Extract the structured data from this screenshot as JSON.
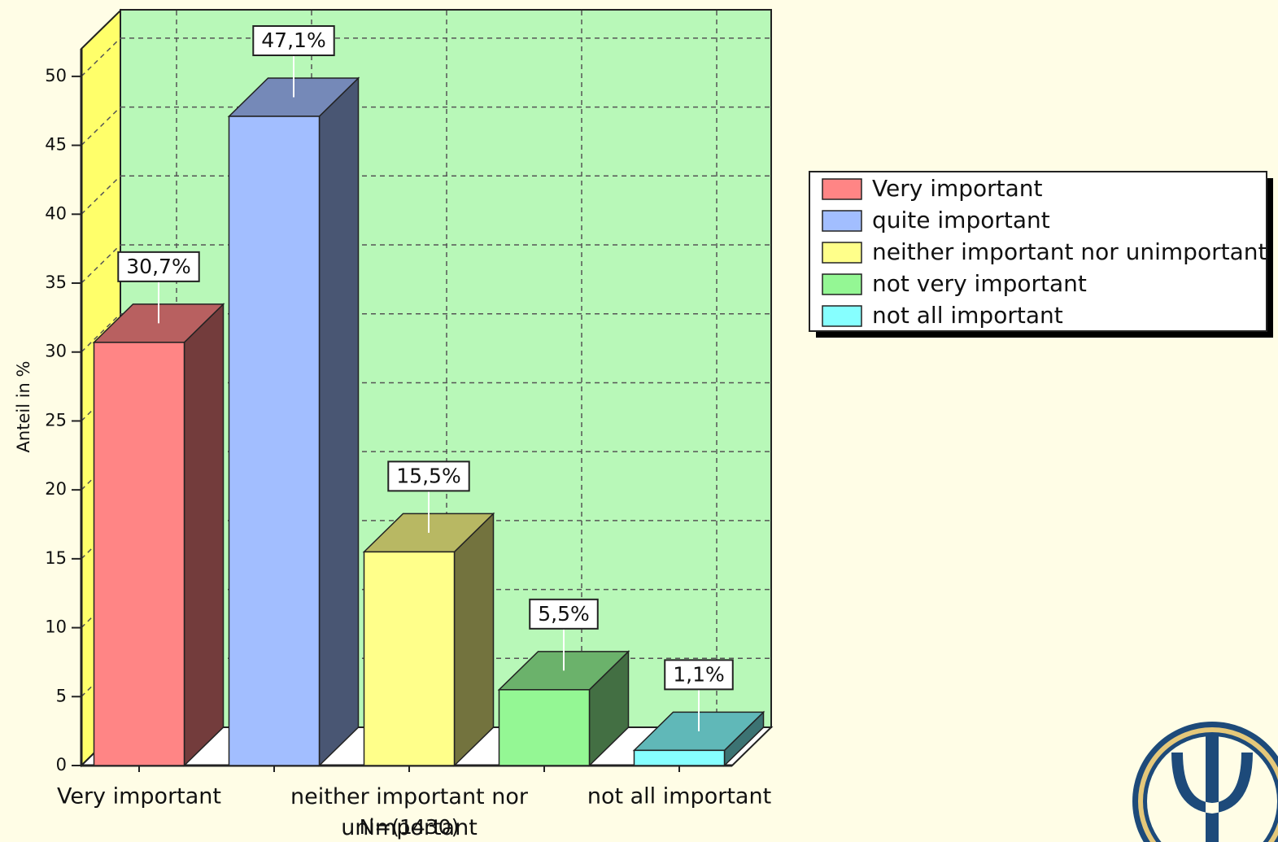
{
  "chart_data": {
    "type": "bar3d",
    "y_label": "Anteil in %",
    "categories": [
      "Very important",
      null,
      "neither important nor unimportant",
      null,
      "not all important"
    ],
    "values": [
      30.7,
      47.1,
      15.5,
      5.5,
      1.1
    ],
    "value_labels": [
      "30,7%",
      "47,1%",
      "15,5%",
      "5,5%",
      "1,1%"
    ],
    "colors": [
      "#ff8585",
      "#a2beff",
      "#ffff8a",
      "#94f794",
      "#86ffff"
    ],
    "legend": [
      "Very important",
      "quite important",
      "neither important nor unimportant",
      "not very important",
      "not all important"
    ],
    "annotation": "N=(1430)",
    "ylim": [
      0,
      52
    ],
    "yticks": [
      0,
      5,
      10,
      15,
      20,
      25,
      30,
      35,
      40,
      45,
      50
    ],
    "grid": true
  }
}
